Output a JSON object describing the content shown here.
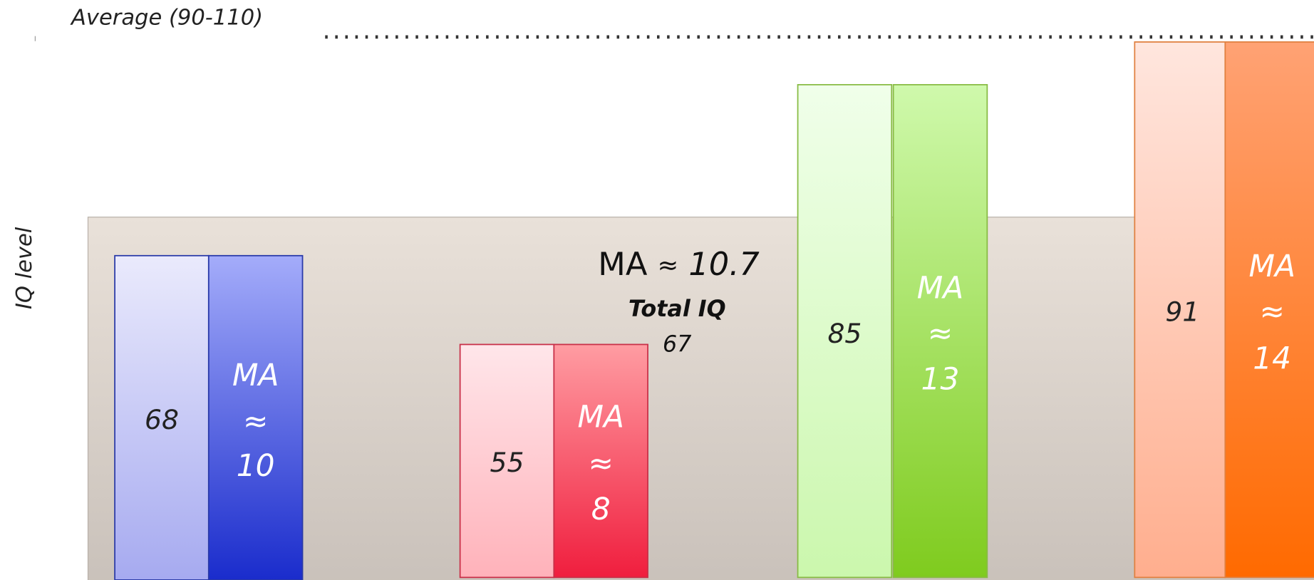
{
  "average_label": "Average (90-110)",
  "y_axis_label": "IQ level",
  "groups": [
    {
      "iq": 68,
      "ma_label": "MA",
      "approx": "≈",
      "ma": 10
    },
    {
      "iq": 55,
      "ma_label": "MA",
      "approx": "≈",
      "ma": 8
    },
    {
      "iq": 85,
      "ma_label": "MA",
      "approx": "≈",
      "ma": 13
    },
    {
      "iq": 91,
      "ma_label": "MA",
      "approx": "≈",
      "ma": 14
    }
  ],
  "total": {
    "ma_label": "MA",
    "approx": "≈",
    "ma": 10.7,
    "iq_label": "Total IQ",
    "iq": 67
  }
}
